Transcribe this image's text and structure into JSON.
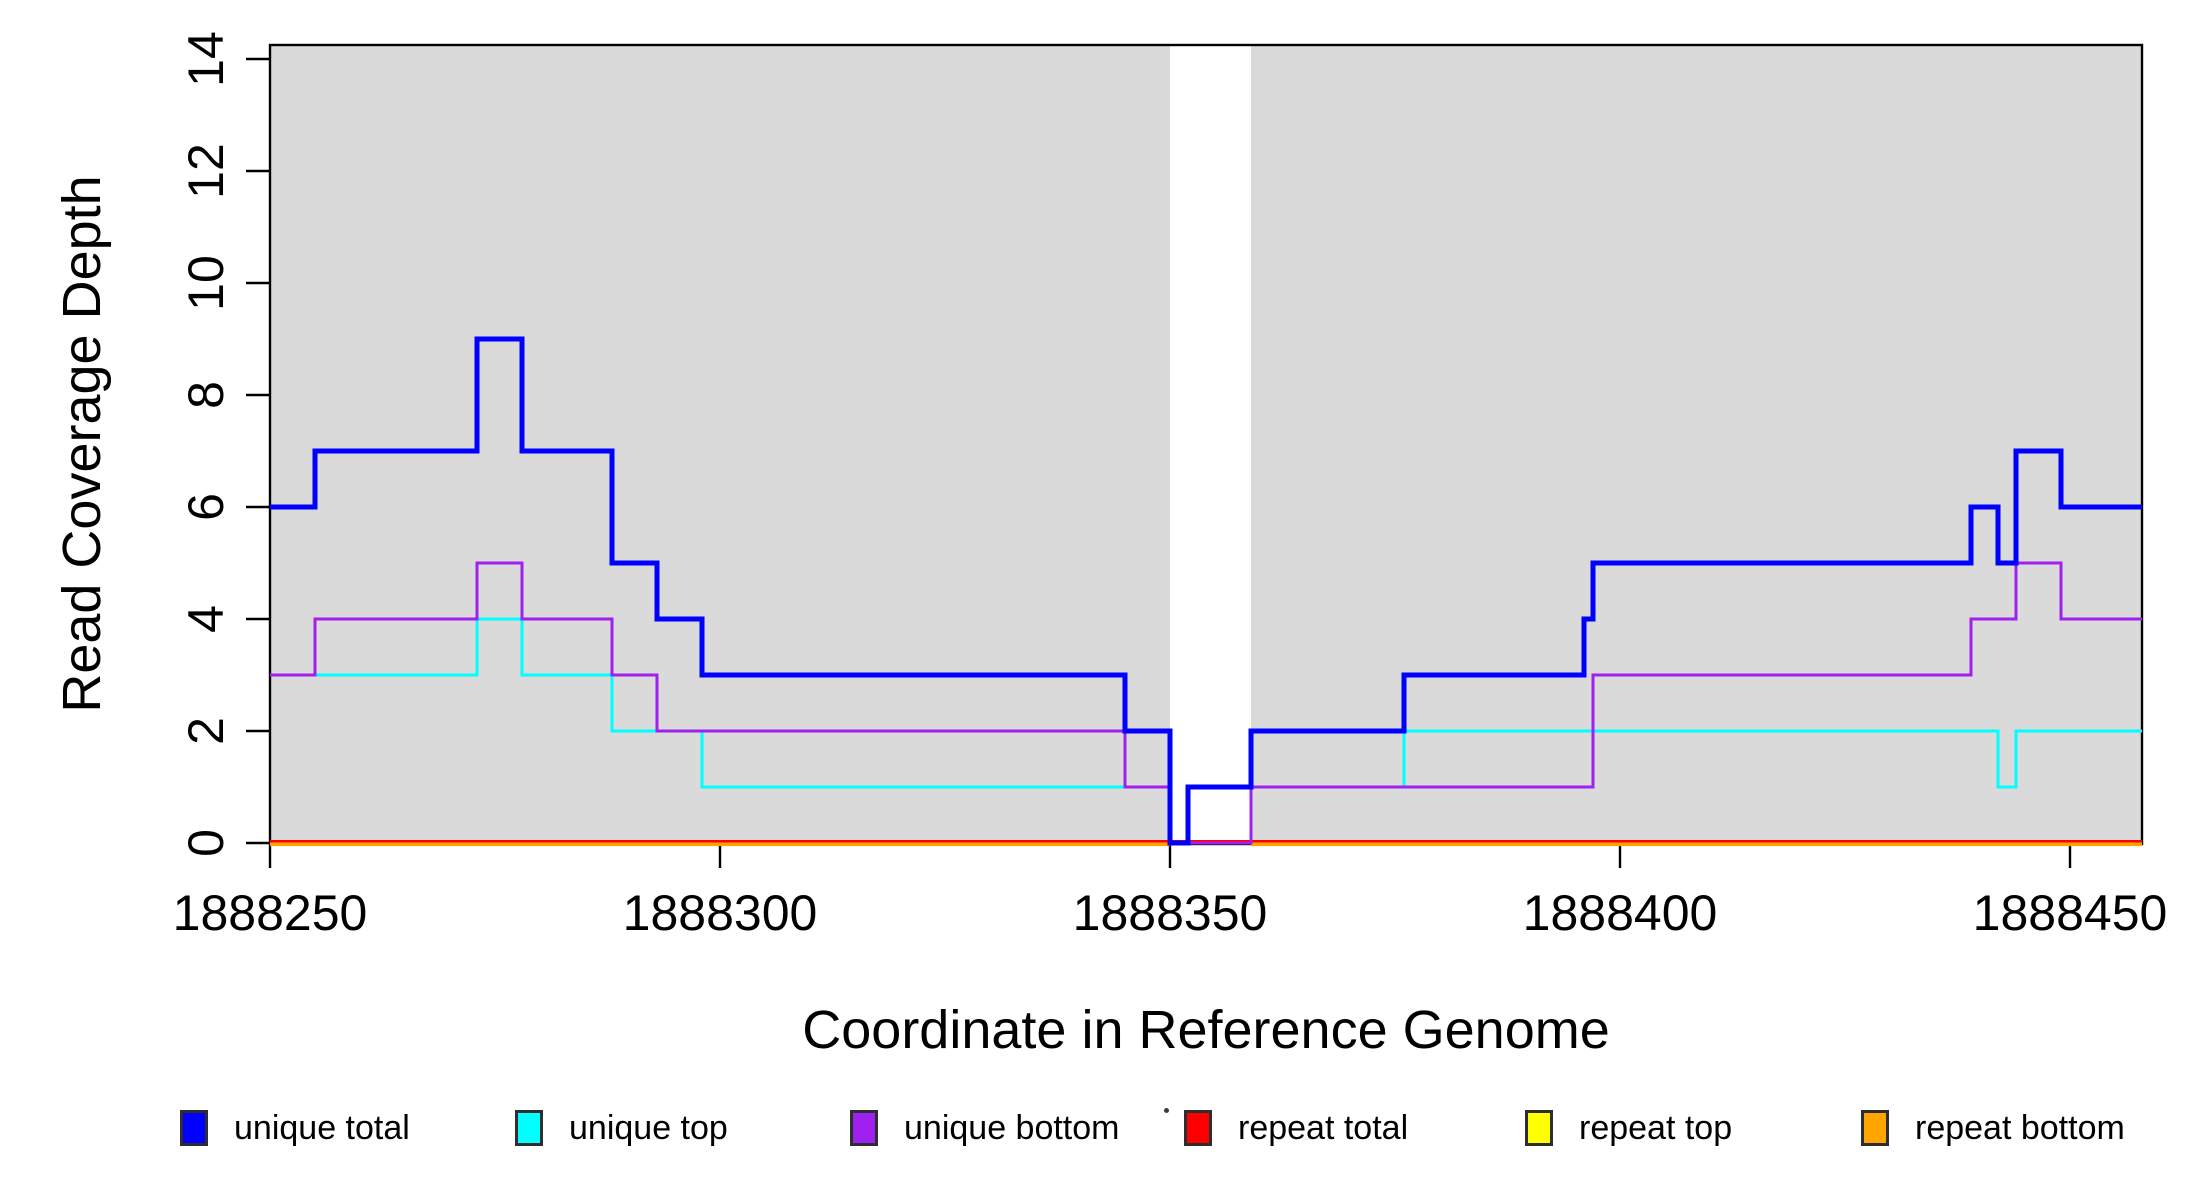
{
  "figure": {
    "y_axis_label": "Read Coverage Depth",
    "x_axis_label": "Coordinate in Reference Genome"
  },
  "legend": {
    "items": [
      {
        "label": "unique total",
        "color": "#0000FF"
      },
      {
        "label": "unique top",
        "color": "#00FFFF"
      },
      {
        "label": "unique bottom",
        "color": "#A020F0"
      },
      {
        "label": "repeat total",
        "color": "#FF0000"
      },
      {
        "label": "repeat top",
        "color": "#FFFF00"
      },
      {
        "label": "repeat bottom",
        "color": "#FFA500"
      }
    ]
  },
  "chart_data": {
    "type": "line",
    "subtype": "step-coverage",
    "title": "",
    "xlabel": "Coordinate in Reference Genome",
    "ylabel": "Read Coverage Depth",
    "xlim": [
      1888250,
      1888458
    ],
    "ylim": [
      0,
      14
    ],
    "x_ticks": [
      1888250,
      1888300,
      1888350,
      1888400,
      1888450
    ],
    "x_tick_labels": [
      "1888250",
      "1888300",
      "1888350",
      "1888400",
      "1888450"
    ],
    "y_ticks": [
      0,
      2,
      4,
      6,
      8,
      10,
      12,
      14
    ],
    "y_tick_labels": [
      "0",
      "2",
      "4",
      "6",
      "8",
      "10",
      "12",
      "14"
    ],
    "grid": false,
    "legend_position": "bottom",
    "background": {
      "shaded_color": "#DADADA",
      "shaded_region_x": [
        1888250,
        1888458
      ],
      "unshaded_gap_x": [
        1888350,
        1888359
      ]
    },
    "series": [
      {
        "name": "unique total",
        "color": "#0000FF",
        "width": 5,
        "steps": [
          [
            1888250,
            6
          ],
          [
            1888255,
            7
          ],
          [
            1888273,
            9
          ],
          [
            1888278,
            7
          ],
          [
            1888288,
            5
          ],
          [
            1888293,
            4
          ],
          [
            1888298,
            3
          ],
          [
            1888345,
            2
          ],
          [
            1888350,
            0
          ],
          [
            1888352,
            1
          ],
          [
            1888359,
            2
          ],
          [
            1888376,
            3
          ],
          [
            1888396,
            4
          ],
          [
            1888397,
            5
          ],
          [
            1888439,
            6
          ],
          [
            1888442,
            5
          ],
          [
            1888444,
            7
          ],
          [
            1888449,
            6
          ]
        ],
        "end": 1888458
      },
      {
        "name": "unique top",
        "color": "#00FFFF",
        "width": 3,
        "steps": [
          [
            1888250,
            3
          ],
          [
            1888273,
            4
          ],
          [
            1888278,
            3
          ],
          [
            1888288,
            2
          ],
          [
            1888298,
            1
          ],
          [
            1888350,
            0
          ],
          [
            1888352,
            1
          ],
          [
            1888376,
            2
          ],
          [
            1888442,
            1
          ],
          [
            1888444,
            2
          ]
        ],
        "end": 1888458
      },
      {
        "name": "unique bottom",
        "color": "#A020F0",
        "width": 3,
        "steps": [
          [
            1888250,
            3
          ],
          [
            1888255,
            4
          ],
          [
            1888273,
            5
          ],
          [
            1888278,
            4
          ],
          [
            1888288,
            3
          ],
          [
            1888293,
            2
          ],
          [
            1888345,
            1
          ],
          [
            1888350,
            0
          ],
          [
            1888359,
            1
          ],
          [
            1888397,
            3
          ],
          [
            1888439,
            4
          ],
          [
            1888444,
            5
          ],
          [
            1888449,
            4
          ]
        ],
        "end": 1888458
      },
      {
        "name": "repeat total",
        "color": "#FF0000",
        "width": 2.5,
        "steps": [
          [
            1888250,
            0
          ]
        ],
        "end": 1888458
      },
      {
        "name": "repeat top",
        "color": "#FFFF00",
        "width": 2,
        "steps": [
          [
            1888250,
            0
          ]
        ],
        "end": 1888458,
        "gaps": [
          [
            1888350,
            1888359
          ]
        ]
      },
      {
        "name": "repeat bottom",
        "color": "#FFA500",
        "width": 5,
        "steps": [
          [
            1888250,
            0
          ]
        ],
        "end": 1888458,
        "gaps": [
          [
            1888350,
            1888359
          ]
        ]
      }
    ]
  }
}
